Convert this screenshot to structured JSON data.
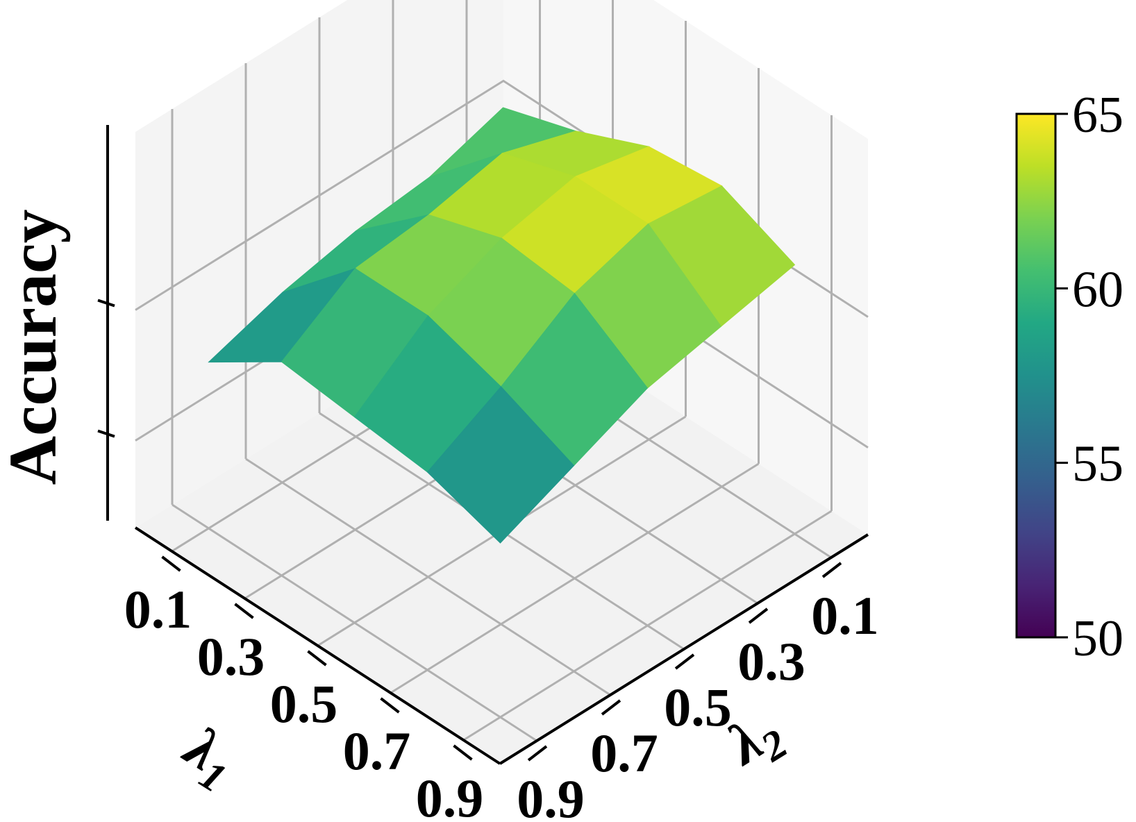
{
  "chart_data": {
    "type": "surface",
    "zlabel": "Accuracy",
    "xlabel": "λ1",
    "ylabel": "λ2",
    "x_ticks": [
      "0.1",
      "0.3",
      "0.5",
      "0.7",
      "0.9"
    ],
    "y_ticks": [
      "0.1",
      "0.3",
      "0.5",
      "0.7",
      "0.9"
    ],
    "x": [
      0.1,
      0.3,
      0.5,
      0.7,
      0.9
    ],
    "y": [
      0.1,
      0.3,
      0.5,
      0.7,
      0.9
    ],
    "z": [
      [
        60.0,
        61.5,
        63.5,
        64.0,
        62.0
      ],
      [
        58.5,
        63.0,
        64.5,
        64.5,
        61.0
      ],
      [
        58.0,
        62.0,
        63.5,
        63.0,
        60.0
      ],
      [
        57.0,
        61.5,
        61.5,
        60.0,
        58.0
      ],
      [
        55.5,
        58.5,
        58.0,
        57.5,
        56.0
      ]
    ],
    "zlim": [
      45,
      70
    ],
    "colormap": "viridis",
    "colorbar": {
      "min": 50,
      "max": 65,
      "ticks": [
        "50",
        "55",
        "60",
        "65"
      ]
    },
    "grid": true
  }
}
